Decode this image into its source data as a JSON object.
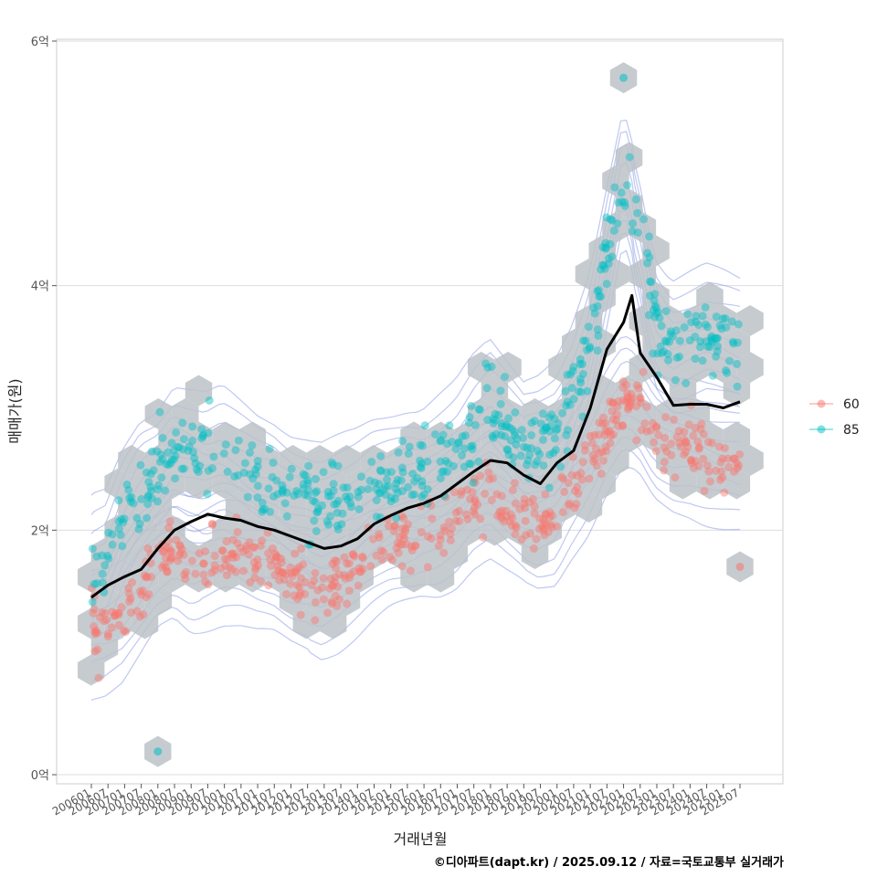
{
  "chart_data": {
    "type": "scatter",
    "title": "",
    "xlabel": "거래년월",
    "ylabel": "매매가(원)",
    "caption": "©디아파트(dapt.kr) / 2025.09.12 / 자료=국토교통부 실거래가",
    "ylim": [
      0,
      6
    ],
    "xlim": [
      "2006-01",
      "2025-07"
    ],
    "y_ticks": [
      {
        "value": 0,
        "label": "0억"
      },
      {
        "value": 2,
        "label": "2억"
      },
      {
        "value": 4,
        "label": "4억"
      },
      {
        "value": 6,
        "label": "6억"
      }
    ],
    "x_tick_labels": [
      "200601",
      "200607",
      "200701",
      "200707",
      "200801",
      "200807",
      "200901",
      "200907",
      "201001",
      "201007",
      "201101",
      "201107",
      "201201",
      "201207",
      "201301",
      "201307",
      "201401",
      "201407",
      "201501",
      "201507",
      "201601",
      "201607",
      "201701",
      "201707",
      "201801",
      "201807",
      "201901",
      "201907",
      "202001",
      "202007",
      "202101",
      "202107",
      "202201",
      "202207",
      "202301",
      "202307",
      "202401",
      "202407",
      "202501",
      "202507"
    ],
    "grid": true,
    "legend_position": "right",
    "legend": [
      {
        "name": "60",
        "color": "#F8766D"
      },
      {
        "name": "85",
        "color": "#00BFC4"
      }
    ],
    "overlays": [
      "hexbin density (grey)",
      "2d density contours (blue)",
      "moving average line (black)"
    ],
    "series": [
      {
        "name": "60",
        "color": "#F8766D",
        "trend": [
          {
            "x": "2006-01",
            "y": 1.2
          },
          {
            "x": "2006-07",
            "y": 1.22
          },
          {
            "x": "2007-01",
            "y": 1.3
          },
          {
            "x": "2007-07",
            "y": 1.5
          },
          {
            "x": "2008-01",
            "y": 1.72
          },
          {
            "x": "2008-07",
            "y": 1.82
          },
          {
            "x": "2009-01",
            "y": 1.72
          },
          {
            "x": "2009-07",
            "y": 1.75
          },
          {
            "x": "2010-01",
            "y": 1.8
          },
          {
            "x": "2010-07",
            "y": 1.78
          },
          {
            "x": "2011-01",
            "y": 1.72
          },
          {
            "x": "2011-07",
            "y": 1.7
          },
          {
            "x": "2012-01",
            "y": 1.62
          },
          {
            "x": "2012-07",
            "y": 1.58
          },
          {
            "x": "2013-01",
            "y": 1.52
          },
          {
            "x": "2013-07",
            "y": 1.58
          },
          {
            "x": "2014-01",
            "y": 1.68
          },
          {
            "x": "2014-07",
            "y": 1.8
          },
          {
            "x": "2015-01",
            "y": 1.9
          },
          {
            "x": "2015-07",
            "y": 1.95
          },
          {
            "x": "2016-01",
            "y": 2.0
          },
          {
            "x": "2016-07",
            "y": 2.02
          },
          {
            "x": "2017-01",
            "y": 2.1
          },
          {
            "x": "2017-07",
            "y": 2.25
          },
          {
            "x": "2018-01",
            "y": 2.32
          },
          {
            "x": "2018-07",
            "y": 2.2
          },
          {
            "x": "2019-01",
            "y": 2.1
          },
          {
            "x": "2019-07",
            "y": 2.05
          },
          {
            "x": "2020-01",
            "y": 2.1
          },
          {
            "x": "2020-07",
            "y": 2.35
          },
          {
            "x": "2021-01",
            "y": 2.55
          },
          {
            "x": "2021-07",
            "y": 2.85
          },
          {
            "x": "2022-01",
            "y": 3.05
          },
          {
            "x": "2022-07",
            "y": 3.0
          },
          {
            "x": "2023-01",
            "y": 2.78
          },
          {
            "x": "2023-07",
            "y": 2.7
          },
          {
            "x": "2024-01",
            "y": 2.68
          },
          {
            "x": "2024-07",
            "y": 2.62
          },
          {
            "x": "2025-01",
            "y": 2.58
          },
          {
            "x": "2025-07",
            "y": 2.55
          }
        ],
        "outliers": [
          {
            "x": "2025-07",
            "y": 1.7
          }
        ]
      },
      {
        "name": "85",
        "color": "#00BFC4",
        "trend": [
          {
            "x": "2006-01",
            "y": 1.7
          },
          {
            "x": "2006-07",
            "y": 1.75
          },
          {
            "x": "2007-01",
            "y": 2.1
          },
          {
            "x": "2007-07",
            "y": 2.35
          },
          {
            "x": "2008-01",
            "y": 2.45
          },
          {
            "x": "2008-07",
            "y": 2.65
          },
          {
            "x": "2009-01",
            "y": 2.6
          },
          {
            "x": "2009-07",
            "y": 2.55
          },
          {
            "x": "2010-01",
            "y": 2.6
          },
          {
            "x": "2010-07",
            "y": 2.5
          },
          {
            "x": "2011-01",
            "y": 2.4
          },
          {
            "x": "2011-07",
            "y": 2.35
          },
          {
            "x": "2012-01",
            "y": 2.25
          },
          {
            "x": "2012-07",
            "y": 2.2
          },
          {
            "x": "2013-01",
            "y": 2.15
          },
          {
            "x": "2013-07",
            "y": 2.2
          },
          {
            "x": "2014-01",
            "y": 2.25
          },
          {
            "x": "2014-07",
            "y": 2.35
          },
          {
            "x": "2015-01",
            "y": 2.4
          },
          {
            "x": "2015-07",
            "y": 2.45
          },
          {
            "x": "2016-01",
            "y": 2.45
          },
          {
            "x": "2016-07",
            "y": 2.55
          },
          {
            "x": "2017-01",
            "y": 2.65
          },
          {
            "x": "2017-07",
            "y": 2.85
          },
          {
            "x": "2018-01",
            "y": 3.0
          },
          {
            "x": "2018-07",
            "y": 2.85
          },
          {
            "x": "2019-01",
            "y": 2.7
          },
          {
            "x": "2019-07",
            "y": 2.75
          },
          {
            "x": "2020-01",
            "y": 2.85
          },
          {
            "x": "2020-07",
            "y": 3.1
          },
          {
            "x": "2021-01",
            "y": 3.5
          },
          {
            "x": "2021-07",
            "y": 4.2
          },
          {
            "x": "2022-01",
            "y": 4.9
          },
          {
            "x": "2022-07",
            "y": 4.4
          },
          {
            "x": "2023-01",
            "y": 3.7
          },
          {
            "x": "2023-07",
            "y": 3.5
          },
          {
            "x": "2024-01",
            "y": 3.55
          },
          {
            "x": "2024-07",
            "y": 3.6
          },
          {
            "x": "2025-01",
            "y": 3.55
          },
          {
            "x": "2025-07",
            "y": 3.5
          }
        ],
        "outliers": [
          {
            "x": "2008-01",
            "y": 0.19
          },
          {
            "x": "2022-01",
            "y": 5.7
          }
        ]
      },
      {
        "name": "",
        "type": "line",
        "color": "#000000",
        "values": [
          {
            "x": "2006-01",
            "y": 1.45
          },
          {
            "x": "2006-07",
            "y": 1.55
          },
          {
            "x": "2007-01",
            "y": 1.62
          },
          {
            "x": "2007-07",
            "y": 1.68
          },
          {
            "x": "2008-01",
            "y": 1.85
          },
          {
            "x": "2008-07",
            "y": 2.0
          },
          {
            "x": "2009-01",
            "y": 2.07
          },
          {
            "x": "2009-07",
            "y": 2.13
          },
          {
            "x": "2010-01",
            "y": 2.1
          },
          {
            "x": "2010-07",
            "y": 2.08
          },
          {
            "x": "2011-01",
            "y": 2.03
          },
          {
            "x": "2011-07",
            "y": 2.0
          },
          {
            "x": "2012-01",
            "y": 1.95
          },
          {
            "x": "2012-07",
            "y": 1.9
          },
          {
            "x": "2013-01",
            "y": 1.85
          },
          {
            "x": "2013-07",
            "y": 1.87
          },
          {
            "x": "2014-01",
            "y": 1.93
          },
          {
            "x": "2014-07",
            "y": 2.05
          },
          {
            "x": "2015-01",
            "y": 2.12
          },
          {
            "x": "2015-07",
            "y": 2.18
          },
          {
            "x": "2016-01",
            "y": 2.22
          },
          {
            "x": "2016-07",
            "y": 2.28
          },
          {
            "x": "2017-01",
            "y": 2.38
          },
          {
            "x": "2017-07",
            "y": 2.48
          },
          {
            "x": "2018-01",
            "y": 2.57
          },
          {
            "x": "2018-07",
            "y": 2.55
          },
          {
            "x": "2019-01",
            "y": 2.45
          },
          {
            "x": "2019-07",
            "y": 2.38
          },
          {
            "x": "2020-01",
            "y": 2.55
          },
          {
            "x": "2020-07",
            "y": 2.65
          },
          {
            "x": "2021-01",
            "y": 3.0
          },
          {
            "x": "2021-07",
            "y": 3.48
          },
          {
            "x": "2022-01",
            "y": 3.7
          },
          {
            "x": "2022-04",
            "y": 3.92
          },
          {
            "x": "2022-07",
            "y": 3.45
          },
          {
            "x": "2023-01",
            "y": 3.25
          },
          {
            "x": "2023-07",
            "y": 3.02
          },
          {
            "x": "2024-01",
            "y": 3.03
          },
          {
            "x": "2024-07",
            "y": 3.03
          },
          {
            "x": "2025-01",
            "y": 3.0
          },
          {
            "x": "2025-07",
            "y": 3.05
          }
        ]
      }
    ]
  }
}
